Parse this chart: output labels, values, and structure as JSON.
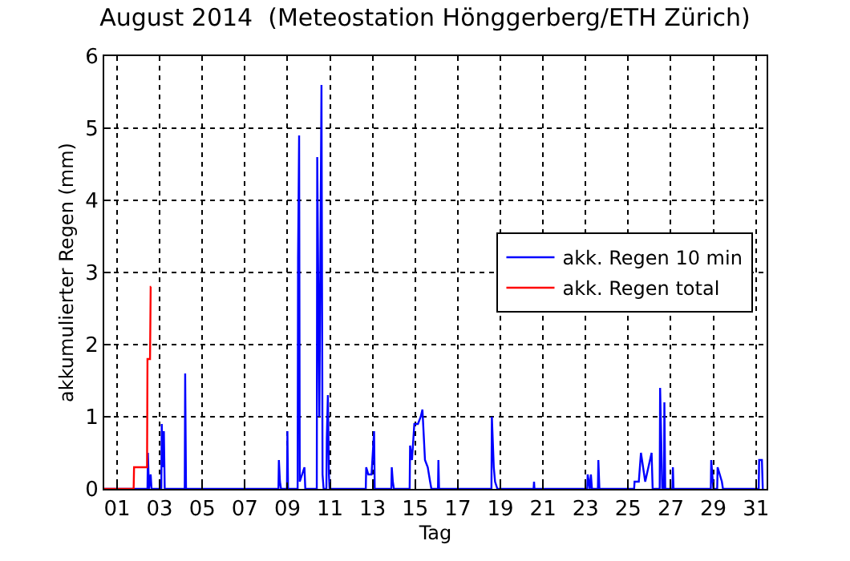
{
  "chart_data": {
    "type": "line",
    "title": "August 2014  (Meteostation Hönggerberg/ETH Zürich)",
    "xlabel": "Tag",
    "ylabel": "akkumulierter Regen (mm)",
    "xlim": [
      0.4,
      31.5
    ],
    "ylim": [
      0,
      6
    ],
    "xticks": [
      {
        "value": 1,
        "label": "01"
      },
      {
        "value": 3,
        "label": "03"
      },
      {
        "value": 5,
        "label": "05"
      },
      {
        "value": 7,
        "label": "07"
      },
      {
        "value": 9,
        "label": "09"
      },
      {
        "value": 11,
        "label": "11"
      },
      {
        "value": 13,
        "label": "13"
      },
      {
        "value": 15,
        "label": "15"
      },
      {
        "value": 17,
        "label": "17"
      },
      {
        "value": 19,
        "label": "19"
      },
      {
        "value": 21,
        "label": "21"
      },
      {
        "value": 23,
        "label": "23"
      },
      {
        "value": 25,
        "label": "25"
      },
      {
        "value": 27,
        "label": "27"
      },
      {
        "value": 29,
        "label": "29"
      },
      {
        "value": 31,
        "label": "31"
      }
    ],
    "yticks": [
      0,
      1,
      2,
      3,
      4,
      5,
      6
    ],
    "grid": true,
    "legend": "right",
    "marker": "none",
    "line_style": "solid",
    "series": [
      {
        "name": "akk. Regen 10 min",
        "color": "#0000ff",
        "x": [
          0.4,
          2.43,
          2.45,
          2.5,
          2.58,
          2.62,
          3.08,
          3.1,
          3.15,
          3.2,
          3.24,
          4.18,
          4.2,
          4.24,
          8.58,
          8.6,
          8.65,
          8.7,
          8.98,
          9.0,
          9.03,
          9.48,
          9.5,
          9.55,
          9.58,
          9.8,
          9.84,
          10.38,
          10.4,
          10.5,
          10.6,
          10.65,
          10.7,
          10.83,
          10.85,
          10.9,
          10.95,
          10.98,
          12.68,
          12.7,
          12.8,
          12.95,
          13.07,
          13.1,
          13.88,
          13.9,
          13.95,
          14.0,
          14.74,
          14.76,
          14.85,
          14.96,
          15.13,
          15.26,
          15.34,
          15.46,
          15.59,
          15.7,
          15.76,
          16.07,
          16.09,
          16.12,
          18.58,
          18.6,
          18.69,
          18.75,
          18.86,
          20.56,
          20.58,
          20.6,
          23.08,
          23.1,
          23.2,
          23.25,
          23.3,
          23.58,
          23.6,
          23.65,
          25.28,
          25.3,
          25.5,
          25.6,
          25.8,
          26.1,
          26.15,
          26.48,
          26.5,
          26.6,
          26.68,
          26.7,
          26.74,
          27.08,
          27.1,
          27.13,
          28.88,
          28.9,
          29.0,
          29.18,
          29.2,
          29.4,
          29.45,
          31.13,
          31.15,
          31.28,
          31.32
        ],
        "values": [
          0,
          0,
          0.5,
          0,
          0.2,
          0,
          0,
          0.9,
          0.3,
          0.8,
          0,
          0,
          1.6,
          0,
          0,
          0.4,
          0.1,
          0,
          0,
          0.8,
          0,
          0,
          3.2,
          4.9,
          0.1,
          0.3,
          0,
          0,
          4.6,
          1.0,
          5.6,
          0.2,
          0,
          0,
          0.7,
          1.3,
          0.2,
          0,
          0,
          0.3,
          0.2,
          0.2,
          0.8,
          0,
          0,
          0.3,
          0.1,
          0,
          0,
          0.6,
          0.4,
          0.9,
          0.9,
          1.0,
          1.1,
          0.4,
          0.3,
          0.1,
          0,
          0,
          0.4,
          0,
          0,
          1.0,
          0.3,
          0.1,
          0,
          0,
          0.1,
          0,
          0,
          0.2,
          0,
          0.2,
          0,
          0,
          0.4,
          0,
          0,
          0.1,
          0.1,
          0.5,
          0.1,
          0.5,
          0,
          0,
          1.4,
          0,
          0,
          1.2,
          0,
          0,
          0.3,
          0,
          0,
          0.4,
          0,
          0,
          0.3,
          0.1,
          0,
          0,
          0.4,
          0.4,
          0
        ]
      },
      {
        "name": "akk. Regen total",
        "color": "#ff0000",
        "x": [
          0.4,
          1.78,
          1.8,
          2.41,
          2.43,
          2.55,
          2.58,
          2.6
        ],
        "values": [
          0,
          0,
          0.3,
          0.3,
          1.8,
          1.8,
          2.8,
          2.8
        ]
      }
    ]
  }
}
